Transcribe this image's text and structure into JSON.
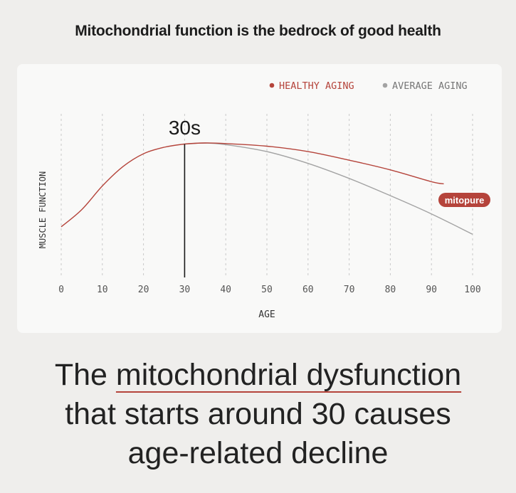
{
  "title": "Mitochondrial function is the bedrock of good health",
  "headline": {
    "part1": "The ",
    "highlight": "mitochondrial dysfunction",
    "line2": "that starts around 30 causes",
    "line3": "age-related decline"
  },
  "brand_badge": "mitopure",
  "colors": {
    "healthy": "#b5443b",
    "average": "#a3a3a3",
    "accent": "#b5443b",
    "grid": "#c9c9c9"
  },
  "chart_data": {
    "type": "line",
    "xlabel": "AGE",
    "ylabel": "MUSCLE FUNCTION",
    "xlim": [
      0,
      100
    ],
    "ylim": [
      0,
      100
    ],
    "x_ticks": [
      "0",
      "10",
      "20",
      "30",
      "40",
      "50",
      "60",
      "70",
      "80",
      "90",
      "100"
    ],
    "grid": "vertical dashed",
    "legend_position": "top-right",
    "annotation": {
      "label": "30s",
      "x": 30
    },
    "series": [
      {
        "name": "HEALTHY AGING",
        "x": [
          0,
          5,
          10,
          15,
          20,
          25,
          30,
          35,
          40,
          50,
          60,
          70,
          80,
          90,
          93
        ],
        "y": [
          22,
          38,
          60,
          78,
          90,
          96,
          99,
          100,
          99.5,
          97,
          92,
          84,
          75,
          64,
          62
        ]
      },
      {
        "name": "AVERAGE AGING",
        "x": [
          30,
          35,
          40,
          50,
          60,
          70,
          80,
          90,
          100
        ],
        "y": [
          99,
          100,
          98.5,
          92,
          81,
          67,
          51,
          34,
          15
        ]
      }
    ]
  }
}
